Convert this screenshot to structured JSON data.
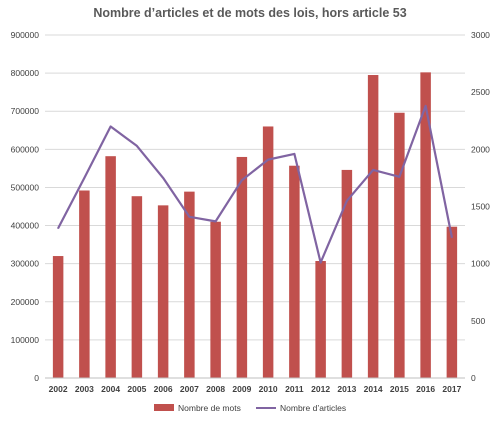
{
  "colors": {
    "bars": "#c0504d",
    "line": "#8064a2",
    "grid": "#d9d9d9",
    "axis": "#bfbfbf"
  },
  "chart_data": {
    "type": "bar",
    "title": "Nombre d’articles et de mots des lois, hors article 53",
    "categories": [
      "2002",
      "2003",
      "2004",
      "2005",
      "2006",
      "2007",
      "2008",
      "2009",
      "2010",
      "2011",
      "2012",
      "2013",
      "2014",
      "2015",
      "2016",
      "2017"
    ],
    "series": [
      {
        "name": "Nombre de mots",
        "type": "bar",
        "axis": "left",
        "values": [
          320000,
          492000,
          582000,
          477000,
          453000,
          489000,
          410000,
          580000,
          660000,
          557000,
          307000,
          546000,
          795000,
          696000,
          802000,
          397000
        ]
      },
      {
        "name": "Nombre d’articles",
        "type": "line",
        "axis": "right",
        "values": [
          1310,
          1750,
          2200,
          2030,
          1750,
          1410,
          1370,
          1730,
          1910,
          1960,
          1010,
          1550,
          1820,
          1760,
          2380,
          1230
        ]
      }
    ],
    "y_left": {
      "ylim": [
        0,
        900000
      ],
      "ticks": [
        "0",
        "100000",
        "200000",
        "300000",
        "400000",
        "500000",
        "600000",
        "700000",
        "800000",
        "900000"
      ]
    },
    "y_right": {
      "ylim": [
        0,
        3000
      ],
      "ticks": [
        "0",
        "500",
        "1000",
        "1500",
        "2000",
        "2500",
        "3000"
      ]
    },
    "grid": true,
    "legend_position": "bottom"
  }
}
